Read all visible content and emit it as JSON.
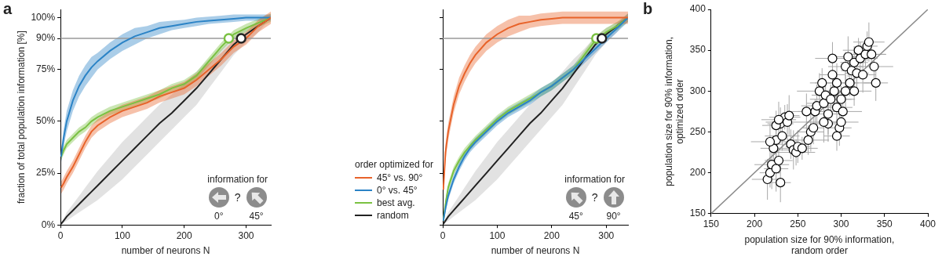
{
  "chart_data": [
    {
      "type": "line",
      "panel_label": "a",
      "x": [
        1,
        5,
        10,
        20,
        30,
        40,
        50,
        60,
        80,
        100,
        120,
        140,
        160,
        180,
        200,
        220,
        240,
        260,
        280,
        300,
        320,
        340
      ],
      "series": [
        {
          "name": "45° vs. 90°",
          "color": "#e8632a",
          "values": [
            18,
            20,
            23,
            28,
            34,
            40,
            45,
            48,
            52,
            55,
            57,
            59,
            62,
            64,
            66,
            70,
            75,
            80,
            86,
            90,
            96,
            100
          ],
          "lower": [
            15,
            17,
            20,
            25,
            31,
            37,
            42,
            45,
            49,
            52,
            54,
            56,
            59,
            61,
            63,
            67,
            72,
            77,
            83,
            87,
            93,
            97
          ],
          "upper": [
            21,
            23,
            26,
            31,
            37,
            43,
            48,
            51,
            55,
            58,
            60,
            62,
            65,
            67,
            69,
            73,
            78,
            83,
            89,
            93,
            99,
            103
          ]
        },
        {
          "name": "0° vs. 45°",
          "color": "#2b83c6",
          "values": [
            33,
            42,
            50,
            60,
            67,
            72,
            76,
            79,
            84,
            88,
            91,
            93,
            95,
            96,
            97,
            98,
            98.5,
            99,
            99.5,
            100,
            100,
            100
          ],
          "lower": [
            30,
            38,
            45,
            55,
            62,
            67,
            71,
            75,
            80,
            84,
            87,
            90,
            92,
            94,
            95,
            96,
            97,
            97.5,
            98,
            98.5,
            98.5,
            98.5
          ],
          "upper": [
            36,
            46,
            55,
            65,
            72,
            77,
            81,
            83,
            88,
            92,
            95,
            96,
            98,
            98.5,
            99,
            100,
            100.5,
            101,
            101.5,
            101.5,
            101.5,
            101.5
          ]
        },
        {
          "name": "best avg.",
          "color": "#7ac142",
          "values": [
            33,
            36,
            39,
            42,
            45,
            47,
            50,
            52,
            55,
            57,
            59,
            61,
            63,
            66,
            68,
            72,
            79,
            86,
            92,
            95,
            97.5,
            100
          ],
          "lower": [
            31,
            34,
            37,
            40,
            43,
            45,
            48,
            50,
            53,
            55,
            57,
            59,
            61,
            64,
            66,
            70,
            77,
            84,
            90,
            93,
            95.5,
            98
          ],
          "upper": [
            35,
            38,
            41,
            44,
            47,
            49,
            52,
            54,
            57,
            59,
            61,
            63,
            65,
            68,
            70,
            74,
            81,
            88,
            94,
            97,
            99.5,
            102
          ]
        },
        {
          "name": "random",
          "color": "#222222",
          "values": [
            0.5,
            2,
            4,
            7,
            10,
            13,
            16,
            19,
            25,
            31,
            37,
            43,
            49,
            54,
            60,
            66,
            73,
            80,
            87,
            92,
            96,
            100
          ],
          "lower": [
            0,
            1,
            2,
            4,
            6,
            8,
            10,
            12,
            17,
            22,
            28,
            34,
            40,
            46,
            52,
            58,
            66,
            74,
            82,
            88,
            93,
            100
          ],
          "upper": [
            1,
            3,
            6,
            10,
            14,
            18,
            22,
            26,
            33,
            40,
            46,
            52,
            58,
            63,
            68,
            74,
            80,
            85,
            91,
            95,
            98,
            100
          ]
        }
      ],
      "xlim": [
        0,
        340
      ],
      "xticks": [
        0,
        100,
        200,
        300
      ],
      "ylim": [
        0,
        104
      ],
      "yticks": [
        {
          "value": 0,
          "label": "0%"
        },
        {
          "value": 25,
          "label": "25%"
        },
        {
          "value": 50,
          "label": "50%"
        },
        {
          "value": 75,
          "label": "75%"
        },
        {
          "value": 90,
          "label": "90%"
        },
        {
          "value": 100,
          "label": "100%"
        }
      ],
      "xlabel": "number of neurons N",
      "ylabel": "fraction of total population information [%]",
      "hline": 90,
      "markers": [
        {
          "x": 272,
          "y": 90,
          "color": "#7ac142"
        },
        {
          "x": 292,
          "y": 90,
          "color": "#222222"
        }
      ],
      "annotation": {
        "title": "information for",
        "labels": [
          "0°",
          "45°"
        ],
        "separator": "?"
      },
      "grid": false
    },
    {
      "type": "line",
      "x": [
        1,
        5,
        10,
        20,
        30,
        40,
        50,
        60,
        80,
        100,
        120,
        140,
        160,
        180,
        200,
        220,
        240,
        260,
        280,
        300,
        320,
        340
      ],
      "series": [
        {
          "name": "45° vs. 90°",
          "color": "#e8632a",
          "values": [
            17,
            35,
            45,
            58,
            67,
            73,
            78,
            82,
            88,
            92,
            95,
            97,
            98,
            99,
            99.5,
            100,
            100,
            100,
            100,
            100,
            100,
            100
          ],
          "lower": [
            14,
            31,
            41,
            54,
            63,
            69,
            74,
            78,
            84,
            88,
            91,
            93,
            95,
            96,
            96.5,
            97,
            97,
            97,
            97,
            97,
            97,
            97
          ],
          "upper": [
            20,
            39,
            49,
            62,
            71,
            77,
            82,
            86,
            92,
            96,
            99,
            101,
            101,
            102,
            102.5,
            103,
            103,
            103,
            103,
            103,
            103,
            103
          ]
        },
        {
          "name": "0° vs. 45°",
          "color": "#2b83c6",
          "values": [
            2,
            8,
            14,
            22,
            28,
            33,
            37,
            40,
            45,
            50,
            54,
            57,
            60,
            64,
            67,
            71,
            75,
            80,
            85,
            90,
            95,
            100
          ],
          "lower": [
            1,
            6,
            12,
            20,
            26,
            31,
            35,
            38,
            43,
            48,
            52,
            55,
            58,
            62,
            65,
            69,
            73,
            78,
            83,
            88,
            93,
            98
          ],
          "upper": [
            3,
            10,
            16,
            24,
            30,
            35,
            39,
            42,
            47,
            52,
            56,
            59,
            62,
            66,
            69,
            73,
            77,
            82,
            87,
            92,
            97,
            102
          ]
        },
        {
          "name": "best avg.",
          "color": "#7ac142",
          "values": [
            2,
            10,
            18,
            26,
            31,
            35,
            38,
            41,
            46,
            51,
            55,
            58,
            61,
            64,
            67,
            71,
            75,
            82,
            89,
            93,
            96,
            100
          ],
          "lower": [
            1,
            8,
            16,
            24,
            29,
            33,
            36,
            39,
            44,
            49,
            53,
            56,
            59,
            62,
            65,
            69,
            73,
            80,
            87,
            91,
            94,
            98
          ],
          "upper": [
            3,
            12,
            20,
            28,
            33,
            37,
            40,
            43,
            48,
            53,
            57,
            60,
            63,
            66,
            69,
            73,
            77,
            84,
            91,
            95,
            98,
            102
          ]
        },
        {
          "name": "random",
          "color": "#222222",
          "values": [
            0.5,
            2,
            4,
            7,
            10,
            13,
            16,
            19,
            25,
            31,
            37,
            43,
            49,
            54,
            60,
            66,
            73,
            80,
            87,
            92,
            96,
            100
          ],
          "lower": [
            0,
            1,
            2,
            4,
            6,
            8,
            10,
            12,
            17,
            22,
            28,
            34,
            40,
            46,
            52,
            58,
            66,
            74,
            82,
            88,
            93,
            100
          ],
          "upper": [
            1,
            3,
            6,
            10,
            14,
            18,
            22,
            26,
            33,
            40,
            46,
            52,
            58,
            63,
            68,
            74,
            80,
            85,
            91,
            95,
            98,
            100
          ]
        }
      ],
      "xlim": [
        0,
        340
      ],
      "xticks": [
        0,
        100,
        200,
        300
      ],
      "ylim": [
        0,
        104
      ],
      "yticks": [
        0,
        25,
        50,
        75,
        90,
        100
      ],
      "tick_labels": "x",
      "xlabel": "number of neurons N",
      "hline": 90,
      "markers": [
        {
          "x": 282,
          "y": 90,
          "color": "#7ac142"
        },
        {
          "x": 292,
          "y": 90,
          "color": "#222222"
        }
      ],
      "annotation": {
        "title": "information for",
        "labels": [
          "45°",
          "90°"
        ],
        "separator": "?"
      },
      "legend": "left",
      "legend_title": "order optimized for",
      "grid": false
    },
    {
      "type": "scatter",
      "panel_label": "b",
      "x": [
        215,
        218,
        220,
        222,
        225,
        218,
        225,
        228,
        230,
        232,
        230,
        235,
        238,
        240,
        242,
        245,
        248,
        250,
        255,
        260,
        262,
        265,
        268,
        270,
        272,
        275,
        278,
        280,
        282,
        285,
        285,
        288,
        290,
        290,
        292,
        295,
        295,
        298,
        300,
        300,
        302,
        305,
        305,
        308,
        310,
        312,
        315,
        315,
        318,
        320,
        322,
        325,
        328,
        330,
        332,
        335,
        338,
        340,
        295,
        280,
        225,
        228
      ],
      "y": [
        192,
        200,
        210,
        230,
        240,
        238,
        205,
        215,
        188,
        245,
        260,
        268,
        262,
        270,
        235,
        228,
        225,
        232,
        230,
        275,
        240,
        250,
        255,
        275,
        282,
        300,
        310,
        285,
        295,
        272,
        260,
        290,
        320,
        340,
        300,
        310,
        280,
        255,
        262,
        290,
        275,
        300,
        330,
        342,
        310,
        325,
        335,
        300,
        322,
        350,
        340,
        320,
        345,
        355,
        360,
        345,
        330,
        310,
        245,
        262,
        258,
        265
      ],
      "x_err": [
        18,
        12,
        20,
        15,
        10,
        22,
        14,
        16,
        12,
        20,
        15,
        18,
        25,
        12,
        20,
        16,
        22,
        14,
        18,
        20,
        24,
        15,
        12,
        20,
        18,
        26,
        14,
        20,
        16,
        22,
        18,
        24,
        15,
        20,
        12,
        25,
        18,
        14,
        20,
        16,
        22,
        15,
        20,
        18,
        25,
        12,
        16,
        20,
        14,
        18,
        20,
        15,
        24,
        12,
        18,
        16,
        22,
        14,
        15,
        20,
        16,
        20
      ],
      "y_err": [
        25,
        18,
        30,
        15,
        20,
        22,
        28,
        16,
        24,
        18,
        20,
        15,
        22,
        25,
        18,
        24,
        16,
        20,
        14,
        22,
        18,
        24,
        20,
        15,
        26,
        22,
        18,
        20,
        16,
        25,
        22,
        18,
        26,
        20,
        15,
        24,
        18,
        22,
        20,
        16,
        24,
        20,
        18,
        25,
        16,
        22,
        20,
        18,
        24,
        15,
        20,
        22,
        16,
        18,
        24,
        20,
        15,
        22,
        18,
        25,
        18,
        22
      ],
      "color": "#000000",
      "marker": "circle",
      "diagonal": [
        [
          150,
          150
        ],
        [
          400,
          400
        ]
      ],
      "xlim": [
        150,
        400
      ],
      "xticks": [
        150,
        200,
        250,
        300,
        350,
        400
      ],
      "ylim": [
        150,
        400
      ],
      "yticks": [
        150,
        200,
        250,
        300,
        350,
        400
      ],
      "xlabel": [
        "population size for 90% information,",
        "random order"
      ],
      "ylabel": [
        "population size for 90% information,",
        "optimized order"
      ],
      "grid": false
    }
  ]
}
